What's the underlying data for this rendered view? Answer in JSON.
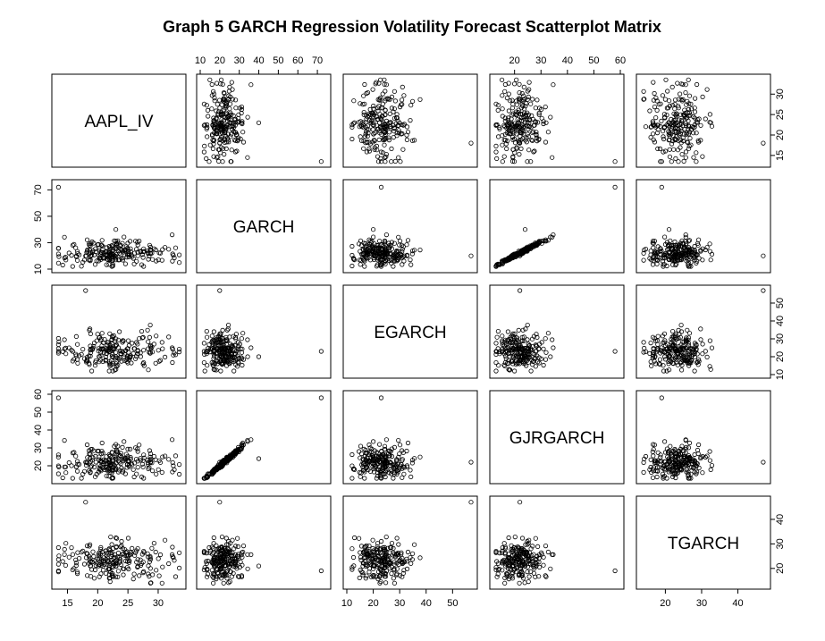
{
  "chart_data": {
    "type": "scatter",
    "subtype": "scatterplot-matrix",
    "title": "Graph 5 GARCH Regression Volatility Forecast Scatterplot Matrix",
    "variables": [
      "AAPL_IV",
      "GARCH",
      "EGARCH",
      "GJRGARCH",
      "TGARCH"
    ],
    "axes": {
      "AAPL_IV": {
        "range": [
          13,
          34
        ],
        "ticks": [
          15,
          20,
          25,
          30
        ]
      },
      "GARCH": {
        "range": [
          10,
          75
        ],
        "ticks": [
          10,
          20,
          30,
          40,
          50,
          60,
          70
        ]
      },
      "EGARCH": {
        "range": [
          10,
          58
        ],
        "ticks": [
          10,
          20,
          30,
          40,
          50
        ]
      },
      "GJRGARCH": {
        "range": [
          12,
          60
        ],
        "ticks": [
          20,
          30,
          40,
          50,
          60
        ]
      },
      "TGARCH": {
        "range": [
          13,
          48
        ],
        "ticks": [
          20,
          30,
          40
        ]
      }
    },
    "tick_display": {
      "top": {
        "1": [
          10,
          20,
          30,
          40,
          50,
          60,
          70
        ],
        "3": [
          20,
          30,
          40,
          50,
          60
        ]
      },
      "right": {
        "0": [
          15,
          20,
          25,
          30
        ],
        "2": [
          10,
          20,
          30,
          40,
          50
        ],
        "4": [
          20,
          30,
          40
        ]
      },
      "left": {
        "1": [
          10,
          30,
          50,
          70
        ],
        "3": [
          20,
          30,
          40,
          50,
          60
        ]
      },
      "bottom": {
        "0": [
          15,
          20,
          25,
          30
        ],
        "2": [
          10,
          20,
          30,
          40,
          50
        ],
        "4": [
          20,
          30,
          40
        ]
      }
    },
    "grid": false,
    "legend": "none",
    "notes": "Pairwise scatter of the same ~220 daily observations; points in each off-diagonal panel are (column variable, row variable)."
  }
}
